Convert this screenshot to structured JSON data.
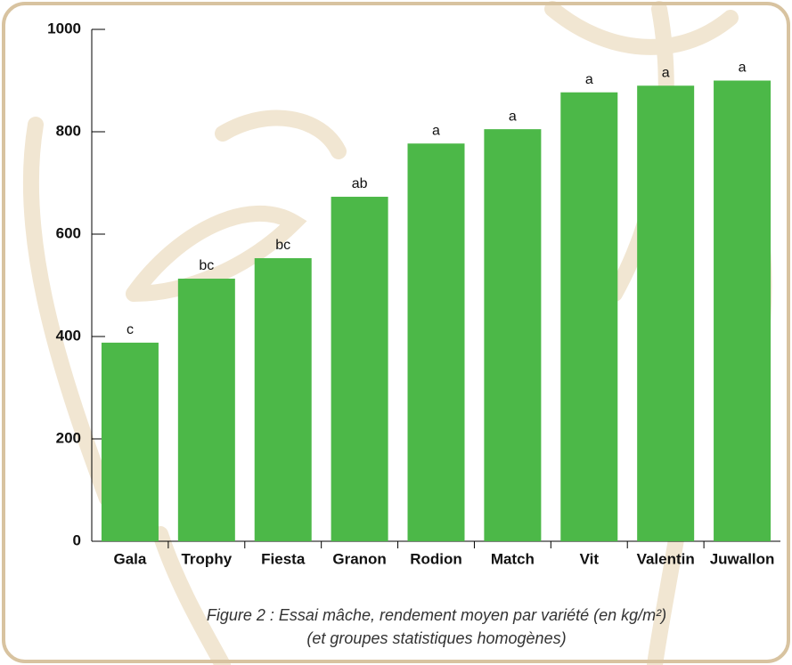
{
  "chart_data": {
    "type": "bar",
    "title": "Figure 2 : Essai mâche, rendement moyen par variété (en kg/m²)",
    "subtitle": "(et groupes statistiques homogènes)",
    "categories": [
      "Gala",
      "Trophy",
      "Fiesta",
      "Granon",
      "Rodion",
      "Match",
      "Vit",
      "Valentin",
      "Juwallon"
    ],
    "values": [
      388,
      513,
      553,
      673,
      777,
      805,
      877,
      890,
      900
    ],
    "groups": [
      "c",
      "bc",
      "bc",
      "ab",
      "a",
      "a",
      "a",
      "a",
      "a"
    ],
    "color": "#4cb848",
    "ylim": [
      0,
      1000
    ],
    "yticks": [
      0,
      200,
      400,
      600,
      800,
      1000
    ],
    "grid": false
  }
}
